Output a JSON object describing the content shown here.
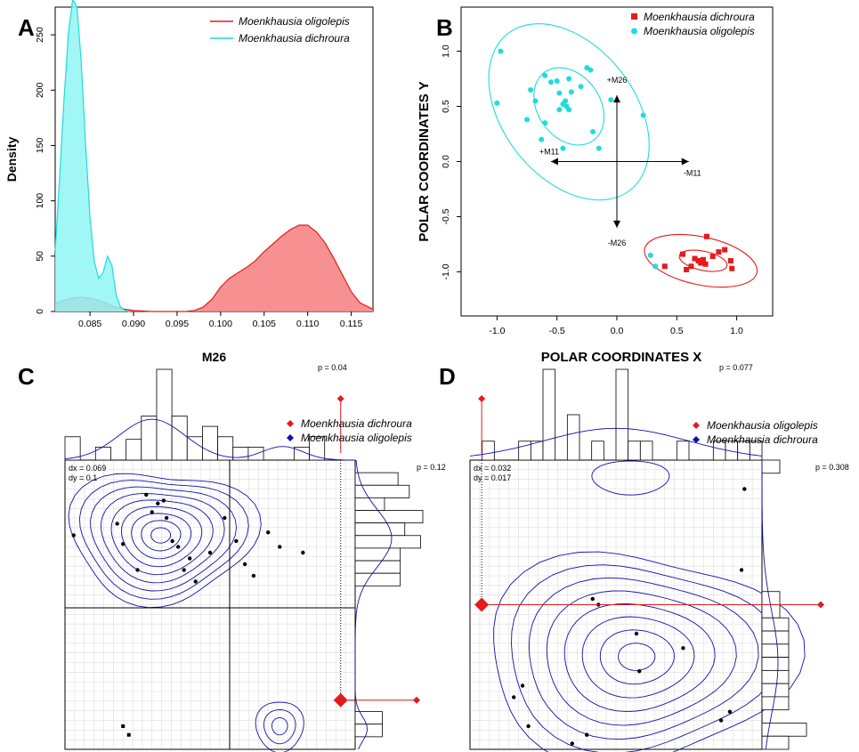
{
  "panels": {
    "A": {
      "letter": "A"
    },
    "B": {
      "letter": "B"
    },
    "C": {
      "letter": "C"
    },
    "D": {
      "letter": "D"
    }
  },
  "colors": {
    "red": "#e41a1c",
    "red_fill": "#f78a8a",
    "cyan": "#1fdcdc",
    "cyan_fill": "#90f4f4",
    "blue": "#1010b0",
    "grid": "#dcdcdc"
  },
  "chart_data": [
    {
      "id": "A",
      "type": "area",
      "xlabel": "M26",
      "ylabel": "Density",
      "xlim": [
        0.081,
        0.1175
      ],
      "ylim": [
        0,
        275
      ],
      "xticks": [
        "0.085",
        "0.090",
        "0.095",
        "0.100",
        "0.105",
        "0.110",
        "0.115"
      ],
      "xtick_values": [
        0.085,
        0.09,
        0.095,
        0.1,
        0.105,
        0.11,
        0.115
      ],
      "yticks": [
        "0",
        "50",
        "100",
        "150",
        "200",
        "250"
      ],
      "ytick_values": [
        0,
        50,
        100,
        150,
        200,
        250
      ],
      "legend": {
        "position": "top-right",
        "entries": [
          "Moenkhausia oligolepis",
          "Moenkhausia dichroura"
        ]
      },
      "series": [
        {
          "name": "Moenkhausia oligolepis",
          "color": "red",
          "x": [
            0.081,
            0.082,
            0.083,
            0.084,
            0.085,
            0.086,
            0.087,
            0.088,
            0.089,
            0.09,
            0.092,
            0.094,
            0.096,
            0.097,
            0.098,
            0.099,
            0.1,
            0.101,
            0.102,
            0.103,
            0.104,
            0.105,
            0.106,
            0.107,
            0.108,
            0.109,
            0.11,
            0.111,
            0.112,
            0.113,
            0.114,
            0.115,
            0.116,
            0.1175
          ],
          "y": [
            7,
            10,
            12,
            13,
            12,
            10,
            7,
            4,
            2,
            1,
            0,
            0,
            0,
            1,
            4,
            11,
            22,
            30,
            35,
            40,
            46,
            54,
            61,
            68,
            74,
            78,
            78,
            72,
            62,
            48,
            33,
            18,
            8,
            2
          ]
        },
        {
          "name": "Moenkhausia dichroura",
          "color": "cyan",
          "x": [
            0.081,
            0.0815,
            0.082,
            0.0825,
            0.083,
            0.0835,
            0.084,
            0.0845,
            0.085,
            0.0855,
            0.086,
            0.0865,
            0.087,
            0.0875,
            0.088,
            0.0885,
            0.089,
            0.0895
          ],
          "y": [
            55,
            120,
            190,
            250,
            282,
            275,
            225,
            150,
            85,
            45,
            30,
            35,
            50,
            42,
            15,
            4,
            1,
            0
          ]
        }
      ]
    },
    {
      "id": "B",
      "type": "scatter",
      "xlabel": "POLAR COORDINATES X",
      "ylabel": "POLAR COORDINATES Y",
      "xlim": [
        -1.3,
        1.3
      ],
      "ylim": [
        -1.4,
        1.4
      ],
      "xticks": [
        "-1.0",
        "-0.5",
        "0.0",
        "0.5",
        "1.0"
      ],
      "xtick_values": [
        -1,
        -0.5,
        0,
        0.5,
        1
      ],
      "yticks": [
        "-1.0",
        "-0.5",
        "0.0",
        "0.5",
        "1.0"
      ],
      "ytick_values": [
        -1,
        -0.5,
        0,
        0.5,
        1
      ],
      "legend": {
        "position": "top-right",
        "entries": [
          "Moenkhausia dichroura",
          "Moenkhausia oligolepis"
        ]
      },
      "arrows": [
        {
          "label": "+M26",
          "x": 0,
          "y": 0.6
        },
        {
          "label": "-M26",
          "x": 0,
          "y": -0.6
        },
        {
          "label": "+M11",
          "x": -0.55,
          "y": 0
        },
        {
          "label": "-M11",
          "x": 0.6,
          "y": 0
        }
      ],
      "series": [
        {
          "name": "Moenkhausia dichroura",
          "color": "red",
          "marker": "square",
          "x": [
            0.4,
            0.55,
            0.58,
            0.62,
            0.65,
            0.68,
            0.7,
            0.72,
            0.74,
            0.75,
            0.8,
            0.85,
            0.9,
            0.95,
            0.96,
            0.72
          ],
          "y": [
            -0.95,
            -0.84,
            -0.98,
            -0.95,
            -0.88,
            -0.9,
            -0.92,
            -0.89,
            -0.93,
            -0.68,
            -0.86,
            -0.82,
            -0.8,
            -0.9,
            -0.97,
            -0.91
          ]
        },
        {
          "name": "Moenkhausia oligolepis",
          "color": "cyan",
          "marker": "circle",
          "x": [
            -0.97,
            -1.0,
            -0.75,
            -0.72,
            -0.68,
            -0.63,
            -0.6,
            -0.55,
            -0.5,
            -0.48,
            -0.45,
            -0.43,
            -0.42,
            -0.4,
            -0.38,
            -0.3,
            -0.25,
            -0.22,
            -0.2,
            -0.15,
            -0.05,
            -0.45,
            -0.48,
            -0.6,
            0.22,
            0.28,
            0.32,
            -0.4
          ],
          "y": [
            1.0,
            0.53,
            0.38,
            0.65,
            0.55,
            0.2,
            0.78,
            0.72,
            0.73,
            0.62,
            0.52,
            0.55,
            0.5,
            0.47,
            0.63,
            0.68,
            0.85,
            0.83,
            0.27,
            0.12,
            0.56,
            0.12,
            0.47,
            0.35,
            0.42,
            -0.85,
            -0.95,
            0.75
          ]
        }
      ]
    },
    {
      "id": "C",
      "type": "scatter",
      "legend": {
        "position": "top-right",
        "entries": [
          "Moenkhausia dichroura",
          "Moenkhausia oligolepis"
        ]
      },
      "p_top": "p = 0.04",
      "p_right": "p = 0.12",
      "dx": "dx = 0.069",
      "dy": "dy = 0.1",
      "top_hist": [
        0.09,
        0,
        0.05,
        0,
        0.08,
        0.17,
        0.35,
        0.17,
        0.09,
        0.13,
        0.09,
        0.05,
        0.05,
        0,
        0,
        0.05,
        0.09,
        0,
        0
      ],
      "right_hist": [
        0,
        0.19,
        0.24,
        0.13,
        0.3,
        0.22,
        0.29,
        0.2,
        0.2,
        0.2,
        0,
        0,
        0,
        0,
        0,
        0,
        0,
        0,
        0,
        0,
        0.12,
        0.12,
        0
      ],
      "series": [
        {
          "name": "Moenkhausia dichroura",
          "color": "red",
          "marker": "diamond",
          "x": [
            0.95
          ],
          "y": [
            0.17
          ]
        },
        {
          "name": "Moenkhausia oligolepis",
          "color": "blue",
          "marker": "circle",
          "x": [
            0.03,
            0.18,
            0.2,
            0.25,
            0.28,
            0.3,
            0.32,
            0.34,
            0.35,
            0.37,
            0.39,
            0.41,
            0.43,
            0.45,
            0.5,
            0.55,
            0.59,
            0.62,
            0.65,
            0.7,
            0.74,
            0.82,
            0.2,
            0.22
          ],
          "y": [
            0.74,
            0.78,
            0.71,
            0.62,
            0.88,
            0.82,
            0.85,
            0.86,
            0.8,
            0.72,
            0.7,
            0.62,
            0.66,
            0.58,
            0.68,
            0.8,
            0.72,
            0.64,
            0.6,
            0.75,
            0.7,
            0.68,
            0.08,
            0.05
          ]
        }
      ]
    },
    {
      "id": "D",
      "type": "scatter",
      "legend": {
        "position": "top-right",
        "entries": [
          "Moenkhausia oligolepis",
          "Moenkhausia dichroura"
        ]
      },
      "p_top": "p = 0.077",
      "p_right": "p = 0.308",
      "dx": "dx = 0.032",
      "dy": "dy = 0.017",
      "top_hist": [
        0,
        0.05,
        0,
        0,
        0.05,
        0.05,
        0.24,
        0,
        0.12,
        0,
        0.05,
        0,
        0.24,
        0.05,
        0.05,
        0,
        0,
        0.05,
        0,
        0,
        0.05,
        0.05,
        0.05,
        0.05
      ],
      "right_hist": [
        0.1,
        0,
        0,
        0,
        0,
        0,
        0,
        0,
        0,
        0,
        0.1,
        0.1,
        0.15,
        0.15,
        0.15,
        0.15,
        0.15,
        0.15,
        0.15,
        0,
        0.25,
        0.15
      ],
      "series": [
        {
          "name": "Moenkhausia oligolepis",
          "color": "red",
          "marker": "diamond",
          "x": [
            0.04
          ],
          "y": [
            0.5
          ]
        },
        {
          "name": "Moenkhausia dichroura",
          "color": "blue",
          "marker": "circle",
          "x": [
            0.18,
            0.35,
            0.4,
            0.42,
            0.44,
            0.57,
            0.58,
            0.86,
            0.89,
            0.93,
            0.73,
            0.94,
            0.15,
            0.2
          ],
          "y": [
            0.22,
            0.02,
            0.05,
            0.52,
            0.5,
            0.4,
            0.27,
            0.1,
            0.13,
            0.62,
            0.35,
            0.9,
            0.18,
            0.08
          ]
        }
      ]
    }
  ]
}
